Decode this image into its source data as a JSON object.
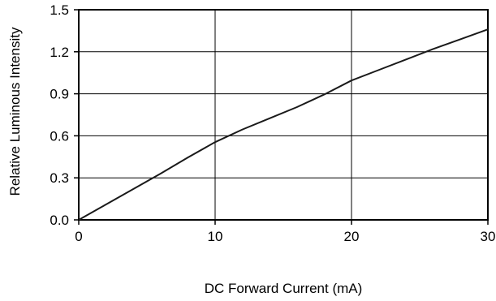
{
  "chart_data": {
    "type": "line",
    "title": "",
    "xlabel": "DC Forward Current (mA)",
    "ylabel": "Relative Luminous Intensity",
    "xlim": [
      0,
      30
    ],
    "ylim": [
      0,
      1.5
    ],
    "x_ticks": [
      0,
      10,
      20,
      30
    ],
    "y_ticks": [
      0.0,
      0.3,
      0.6,
      0.9,
      1.2,
      1.5
    ],
    "x_tick_labels": [
      "0",
      "10",
      "20",
      "30"
    ],
    "y_tick_labels": [
      "0.0",
      "0.3",
      "0.6",
      "0.9",
      "1.2",
      "1.5"
    ],
    "grid": true,
    "legend": "none",
    "colors": {
      "line": "#1a1a1a",
      "grid": "#000000",
      "frame": "#000000"
    },
    "series": [
      {
        "x": [
          0,
          2,
          4,
          6,
          8,
          10,
          12,
          14,
          16,
          18,
          20,
          22,
          24,
          26,
          28,
          30
        ],
        "values": [
          0.0,
          0.11,
          0.22,
          0.33,
          0.445,
          0.555,
          0.645,
          0.725,
          0.805,
          0.895,
          0.995,
          1.07,
          1.145,
          1.22,
          1.29,
          1.36
        ]
      }
    ]
  }
}
